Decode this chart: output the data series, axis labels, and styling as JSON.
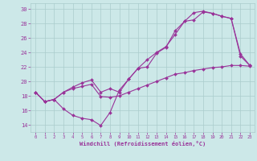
{
  "xlabel": "Windchill (Refroidissement éolien,°C)",
  "xlim": [
    -0.5,
    23.5
  ],
  "ylim": [
    13.0,
    30.8
  ],
  "xticks": [
    0,
    1,
    2,
    3,
    4,
    5,
    6,
    7,
    8,
    9,
    10,
    11,
    12,
    13,
    14,
    15,
    16,
    17,
    18,
    19,
    20,
    21,
    22,
    23
  ],
  "yticks": [
    14,
    16,
    18,
    20,
    22,
    24,
    26,
    28,
    30
  ],
  "background_color": "#cce8e8",
  "line_color": "#993399",
  "grid_color": "#aacccc",
  "line1_x": [
    0,
    1,
    2,
    3,
    4,
    5,
    6,
    7,
    8,
    9,
    10,
    11,
    12,
    13,
    14,
    15,
    16,
    17,
    18,
    19,
    20,
    21,
    22,
    23
  ],
  "line1_y": [
    18.5,
    17.2,
    17.5,
    16.2,
    15.3,
    14.9,
    14.7,
    13.9,
    15.7,
    18.8,
    20.3,
    21.8,
    22.0,
    23.9,
    24.7,
    27.0,
    28.3,
    28.5,
    29.6,
    29.4,
    29.0,
    28.7,
    23.5,
    22.2
  ],
  "line2_x": [
    0,
    1,
    2,
    3,
    4,
    5,
    6,
    7,
    8,
    9,
    10,
    11,
    12,
    13,
    14,
    15,
    16,
    17,
    18,
    19,
    20,
    21,
    22,
    23
  ],
  "line2_y": [
    18.5,
    17.2,
    17.5,
    18.5,
    19.0,
    19.3,
    19.6,
    17.9,
    17.8,
    18.0,
    18.5,
    19.0,
    19.5,
    20.0,
    20.5,
    21.0,
    21.2,
    21.5,
    21.7,
    21.9,
    22.0,
    22.2,
    22.2,
    22.1
  ],
  "line3_x": [
    0,
    1,
    2,
    3,
    4,
    5,
    6,
    7,
    8,
    9,
    10,
    11,
    12,
    13,
    14,
    15,
    16,
    17,
    18,
    19,
    20,
    21,
    22,
    23
  ],
  "line3_y": [
    18.5,
    17.2,
    17.5,
    18.5,
    19.2,
    19.8,
    20.2,
    18.5,
    19.0,
    18.5,
    20.3,
    21.8,
    23.0,
    24.0,
    24.8,
    26.5,
    28.3,
    29.5,
    29.7,
    29.4,
    29.0,
    28.7,
    23.8,
    22.2
  ]
}
